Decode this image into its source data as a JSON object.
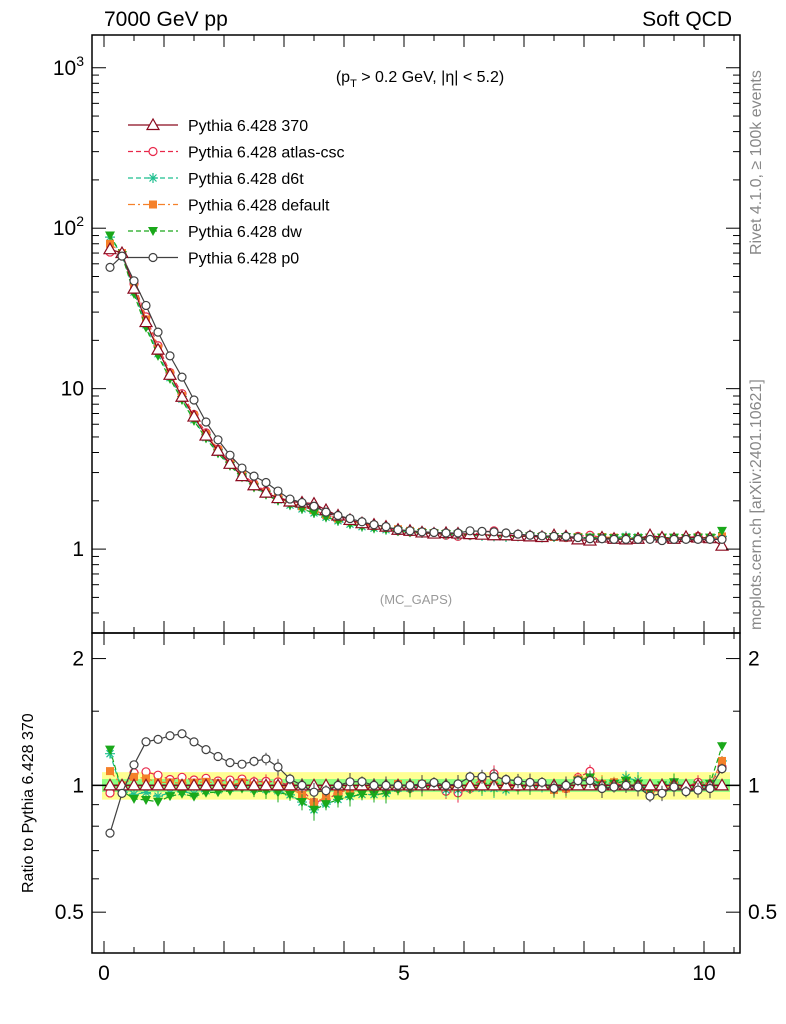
{
  "header": {
    "left_label": "7000 GeV pp",
    "right_label": "Soft QCD"
  },
  "side_labels": {
    "rivet": "Rivet 4.1.0, ≥ 100k events",
    "mcplots": "mcplots.cern.ch [arXiv:2401.10621]"
  },
  "colors": {
    "p370": "#8b0a1f",
    "atlas_csc": "#e8284a",
    "d6t": "#1fbf8f",
    "default": "#f5812a",
    "dw": "#1aa81a",
    "p0": "#404040",
    "band_yellow": "#ffff80",
    "band_green": "#80ff80"
  },
  "chart_data": [
    {
      "id": "main",
      "type": "line",
      "yscale": "log",
      "title": "(p_T > 0.2 GeV, |η| < 5.2)",
      "title_parts": {
        "pre": "(p",
        "sub": "T",
        "post": " > 0.2 GeV, |η| < 5.2)"
      },
      "watermark": "(MC_GAPS)",
      "xlim": [
        -0.2,
        10.6
      ],
      "ylim": [
        0.3,
        1600
      ],
      "ytick_labels": [
        {
          "value": 1,
          "label": "1"
        },
        {
          "value": 10,
          "label": "10"
        },
        {
          "value": 100,
          "label": "10",
          "sup": "2"
        },
        {
          "value": 1000,
          "label": "10",
          "sup": "3"
        }
      ],
      "x": [
        0.1,
        0.3,
        0.5,
        0.7,
        0.9,
        1.1,
        1.3,
        1.5,
        1.7,
        1.9,
        2.1,
        2.3,
        2.5,
        2.7,
        2.9,
        3.1,
        3.3,
        3.5,
        3.7,
        3.9,
        4.1,
        4.3,
        4.5,
        4.7,
        4.9,
        5.1,
        5.3,
        5.5,
        5.7,
        5.9,
        6.1,
        6.3,
        6.5,
        6.7,
        6.9,
        7.1,
        7.3,
        7.5,
        7.7,
        7.9,
        8.1,
        8.3,
        8.5,
        8.7,
        8.9,
        9.1,
        9.3,
        9.5,
        9.7,
        9.9,
        10.1,
        10.3
      ],
      "series": [
        {
          "key": "p370",
          "name": "Pythia 6.428 370",
          "marker": "triangle-open",
          "dash": "solid",
          "values": [
            74,
            70,
            42,
            26,
            17.5,
            12.2,
            8.9,
            6.7,
            5.1,
            4.1,
            3.4,
            2.85,
            2.5,
            2.25,
            2.08,
            1.98,
            1.95,
            1.92,
            1.75,
            1.62,
            1.52,
            1.45,
            1.42,
            1.38,
            1.32,
            1.3,
            1.27,
            1.25,
            1.26,
            1.25,
            1.24,
            1.23,
            1.22,
            1.22,
            1.21,
            1.2,
            1.19,
            1.22,
            1.2,
            1.15,
            1.13,
            1.18,
            1.16,
            1.15,
            1.16,
            1.22,
            1.18,
            1.16,
            1.19,
            1.18,
            1.17,
            1.05
          ]
        },
        {
          "key": "atlas_csc",
          "name": "Pythia 6.428 atlas-csc",
          "marker": "circle-open",
          "dash": "dashed",
          "values": [
            71,
            69,
            45,
            28,
            18.5,
            12.6,
            9.3,
            6.9,
            5.3,
            4.2,
            3.5,
            2.95,
            2.55,
            2.3,
            2.12,
            1.98,
            1.9,
            1.75,
            1.62,
            1.55,
            1.5,
            1.42,
            1.38,
            1.36,
            1.3,
            1.28,
            1.27,
            1.26,
            1.22,
            1.2,
            1.22,
            1.28,
            1.3,
            1.24,
            1.2,
            1.22,
            1.2,
            1.2,
            1.18,
            1.2,
            1.22,
            1.18,
            1.17,
            1.15,
            1.16,
            1.18,
            1.15,
            1.17,
            1.18,
            1.2,
            1.18,
            1.16
          ]
        },
        {
          "key": "d6t",
          "name": "Pythia 6.428 d6t",
          "marker": "star",
          "dash": "dashed",
          "values": [
            88,
            68,
            40,
            25,
            16.5,
            11.7,
            8.6,
            6.4,
            4.95,
            4.0,
            3.35,
            2.85,
            2.45,
            2.2,
            2.02,
            1.88,
            1.78,
            1.68,
            1.58,
            1.5,
            1.43,
            1.38,
            1.35,
            1.32,
            1.3,
            1.28,
            1.26,
            1.25,
            1.23,
            1.22,
            1.22,
            1.21,
            1.2,
            1.19,
            1.2,
            1.2,
            1.18,
            1.19,
            1.19,
            1.18,
            1.18,
            1.17,
            1.18,
            1.2,
            1.19,
            1.18,
            1.17,
            1.18,
            1.18,
            1.17,
            1.17,
            1.2
          ]
        },
        {
          "key": "default",
          "name": "Pythia 6.428 default",
          "marker": "square",
          "dash": "dashdot",
          "values": [
            80,
            70,
            44,
            27,
            17.8,
            12.4,
            9.0,
            6.8,
            5.2,
            4.15,
            3.4,
            2.9,
            2.5,
            2.25,
            2.08,
            1.95,
            1.85,
            1.75,
            1.64,
            1.55,
            1.49,
            1.44,
            1.4,
            1.36,
            1.33,
            1.3,
            1.28,
            1.26,
            1.25,
            1.24,
            1.23,
            1.23,
            1.22,
            1.21,
            1.21,
            1.2,
            1.2,
            1.19,
            1.18,
            1.19,
            1.18,
            1.19,
            1.18,
            1.17,
            1.17,
            1.18,
            1.16,
            1.17,
            1.17,
            1.18,
            1.17,
            1.2
          ]
        },
        {
          "key": "dw",
          "name": "Pythia 6.428 dw",
          "marker": "triangle-down",
          "dash": "dashed",
          "values": [
            90,
            68,
            39,
            24,
            16.0,
            11.5,
            8.5,
            6.3,
            4.9,
            3.95,
            3.3,
            2.8,
            2.42,
            2.18,
            2.0,
            1.88,
            1.78,
            1.68,
            1.58,
            1.5,
            1.43,
            1.38,
            1.35,
            1.32,
            1.29,
            1.27,
            1.26,
            1.25,
            1.24,
            1.23,
            1.22,
            1.22,
            1.21,
            1.2,
            1.2,
            1.2,
            1.19,
            1.19,
            1.19,
            1.18,
            1.18,
            1.18,
            1.17,
            1.18,
            1.17,
            1.18,
            1.18,
            1.18,
            1.17,
            1.18,
            1.18,
            1.3
          ]
        },
        {
          "key": "p0",
          "name": "Pythia 6.428 p0",
          "marker": "circle-open",
          "dash": "solid",
          "values": [
            57,
            67,
            47,
            33,
            22.5,
            16,
            11.8,
            8.5,
            6.2,
            4.8,
            3.85,
            3.2,
            2.85,
            2.6,
            2.3,
            2.05,
            1.95,
            1.85,
            1.7,
            1.62,
            1.55,
            1.48,
            1.42,
            1.38,
            1.32,
            1.3,
            1.28,
            1.27,
            1.26,
            1.26,
            1.3,
            1.29,
            1.28,
            1.26,
            1.24,
            1.22,
            1.21,
            1.2,
            1.2,
            1.18,
            1.16,
            1.16,
            1.15,
            1.15,
            1.15,
            1.15,
            1.13,
            1.15,
            1.15,
            1.15,
            1.15,
            1.15
          ]
        }
      ]
    },
    {
      "id": "ratio",
      "type": "line",
      "ylabel": "Ratio to Pythia 6.428 370",
      "xlim": [
        -0.2,
        10.6
      ],
      "ylim": [
        0.4,
        2.3
      ],
      "xtick_labels": [
        "0",
        "5",
        "10"
      ],
      "ytick_labels": [
        {
          "value": 0.5,
          "label": "0.5"
        },
        {
          "value": 1,
          "label": "1"
        },
        {
          "value": 2,
          "label": "2"
        }
      ],
      "bands": {
        "yellow_half_width": 0.075,
        "green_half_width": 0.035
      }
    }
  ]
}
